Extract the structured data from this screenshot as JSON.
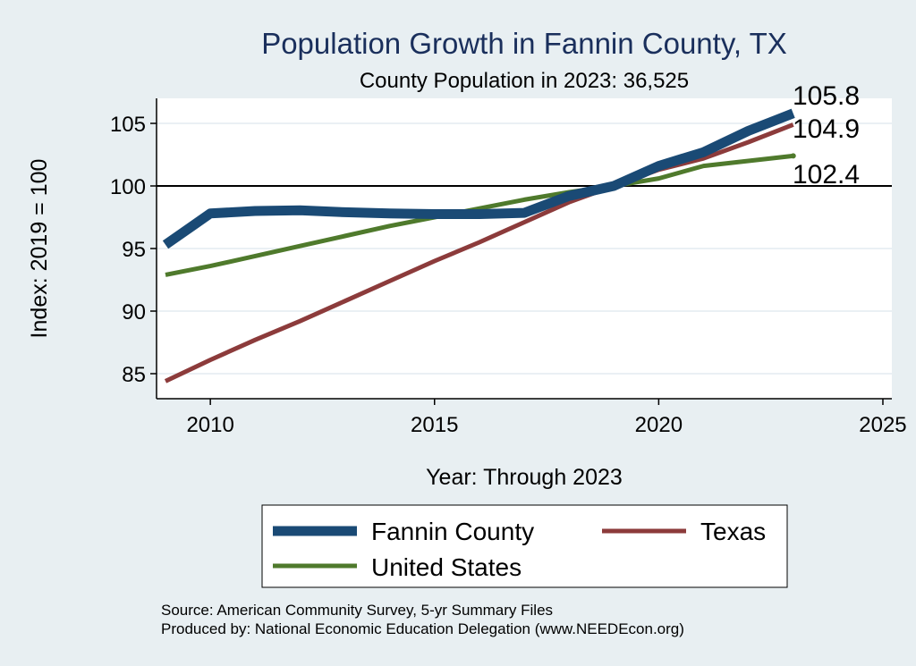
{
  "chart_data": {
    "type": "line",
    "title": "Population Growth in Fannin County, TX",
    "subtitle": "County Population in 2023: 36,525",
    "xlabel": "Year: Through 2023",
    "ylabel": "Index: 2019 = 100",
    "xlim": [
      2008.8,
      2025.2
    ],
    "ylim": [
      83,
      107
    ],
    "x_ticks": [
      2010,
      2015,
      2020,
      2025
    ],
    "y_ticks": [
      85,
      90,
      95,
      100,
      105
    ],
    "reference_line": 100,
    "x": [
      2009,
      2010,
      2011,
      2012,
      2013,
      2014,
      2015,
      2016,
      2017,
      2018,
      2019,
      2020,
      2021,
      2022,
      2023
    ],
    "series": [
      {
        "name": "Fannin  County",
        "color": "#1a4a75",
        "values": [
          95.3,
          97.8,
          98.0,
          98.05,
          97.9,
          97.8,
          97.75,
          97.75,
          97.85,
          99.2,
          100.0,
          101.6,
          102.7,
          104.4,
          105.8
        ],
        "end_label": "105.8"
      },
      {
        "name": "Texas",
        "color": "#8c3b3b",
        "values": [
          84.4,
          86.1,
          87.7,
          89.2,
          90.8,
          92.4,
          94.0,
          95.5,
          97.1,
          98.7,
          100.0,
          101.3,
          102.2,
          103.5,
          104.9
        ],
        "end_label": "104.9"
      },
      {
        "name": "United States",
        "color": "#4f7a2c",
        "values": [
          92.9,
          93.6,
          94.4,
          95.2,
          96.0,
          96.8,
          97.5,
          98.2,
          98.9,
          99.5,
          100.0,
          100.6,
          101.6,
          102.0,
          102.4
        ],
        "end_label": "102.4"
      }
    ],
    "legend": {
      "entries": [
        "Fannin  County",
        "Texas",
        "United States"
      ],
      "position": "bottom"
    }
  },
  "source_line1": "Source: American Community Survey, 5-yr Summary Files",
  "source_line2": "Produced by: National Economic Education Delegation (www.NEEDEcon.org)"
}
